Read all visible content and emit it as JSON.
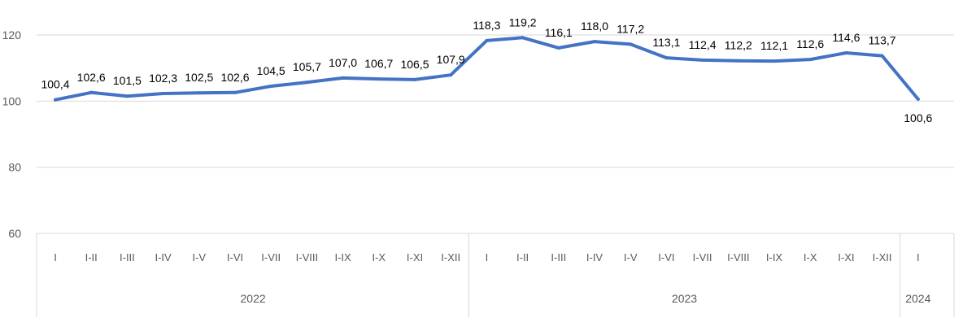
{
  "chart_data": {
    "type": "line",
    "title": "",
    "xlabel": "",
    "ylabel": "",
    "ylim": [
      60,
      120
    ],
    "yticks": [
      60,
      80,
      100,
      120
    ],
    "grid": true,
    "legend": "none",
    "colors": {
      "line": "#4472c4",
      "grid": "#d9d9d9",
      "axis_text": "#595959",
      "data_label": "#000000"
    },
    "categories": [
      "I",
      "I-II",
      "I-III",
      "I-IV",
      "I-V",
      "I-VI",
      "I-VII",
      "I-VIII",
      "I-IX",
      "I-X",
      "I-XI",
      "I-XII",
      "I",
      "I-II",
      "I-III",
      "I-IV",
      "I-V",
      "I-VI",
      "I-VII",
      "I-VIII",
      "I-IX",
      "I-X",
      "I-XI",
      "I-XII",
      "I"
    ],
    "groups": [
      {
        "label": "2022",
        "count": 12
      },
      {
        "label": "2023",
        "count": 12
      },
      {
        "label": "2024",
        "count": 1
      }
    ],
    "series": [
      {
        "values": [
          100.4,
          102.6,
          101.5,
          102.3,
          102.5,
          102.6,
          104.5,
          105.7,
          107.0,
          106.7,
          106.5,
          107.9,
          118.3,
          119.2,
          116.1,
          118.0,
          117.2,
          113.1,
          112.4,
          112.2,
          112.1,
          112.6,
          114.6,
          113.7,
          100.6
        ],
        "labels": [
          "100,4",
          "102,6",
          "101,5",
          "102,3",
          "102,5",
          "102,6",
          "104,5",
          "105,7",
          "107,0",
          "106,7",
          "106,5",
          "107,9",
          "118,3",
          "119,2",
          "116,1",
          "118,0",
          "117,2",
          "113,1",
          "112,4",
          "112,2",
          "112,1",
          "112,6",
          "114,6",
          "113,7",
          "100,6"
        ]
      }
    ]
  }
}
